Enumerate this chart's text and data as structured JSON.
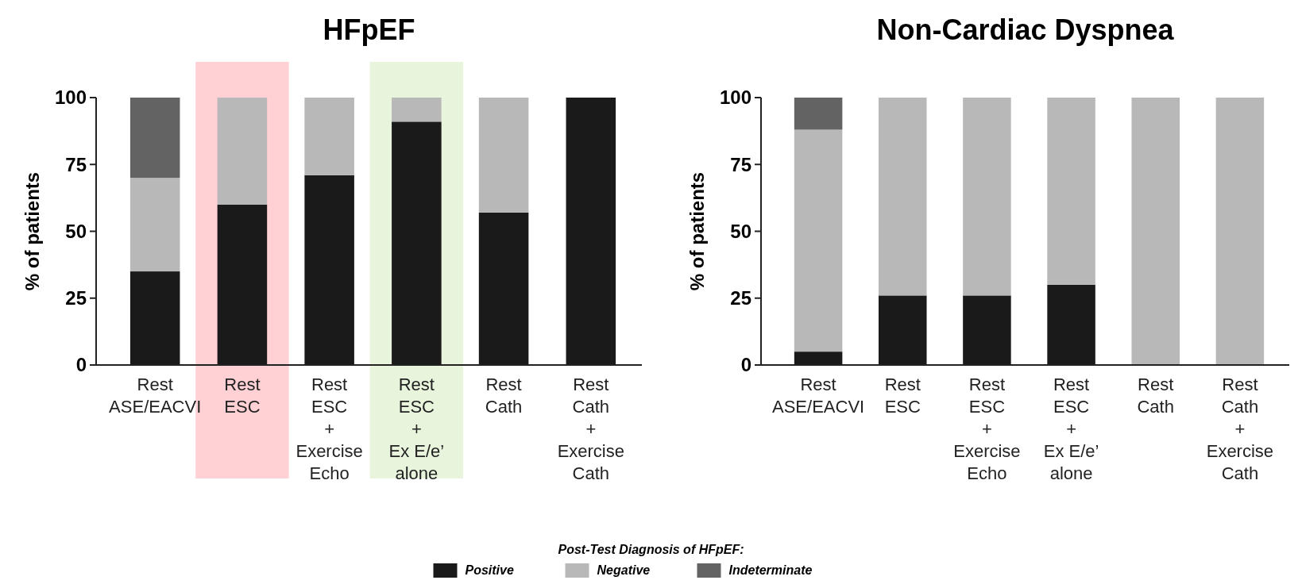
{
  "chart_data": [
    {
      "type": "bar",
      "title": "HFpEF",
      "ylabel": "% of patients",
      "stacked": true,
      "legend": "bottom",
      "legend_title": "Post-Test Diagnosis of HFpEF:",
      "categories": [
        "Rest\nASE/EACVI",
        "Rest\nESC",
        "Rest\nESC\n+\nExercise\nEcho",
        "Rest\nESC\n+\nEx E/e’\nalone",
        "Rest\nCath",
        "Rest\nCath\n+\nExercise\nCath"
      ],
      "series": [
        {
          "name": "Positive",
          "color": "#1a1a1a",
          "values": [
            35,
            60,
            71,
            91,
            57,
            100
          ]
        },
        {
          "name": "Negative",
          "color": "#b8b8b8",
          "values": [
            35,
            40,
            29,
            9,
            43,
            0
          ]
        },
        {
          "name": "Indeterminate",
          "color": "#636363",
          "values": [
            30,
            0,
            0,
            0,
            0,
            0
          ]
        }
      ],
      "ylim": [
        0,
        100
      ],
      "yticks": [
        0,
        25,
        50,
        75,
        100
      ],
      "grid": false,
      "bands": [
        {
          "axis": "x",
          "from": "Rest\nESC",
          "to": "Rest\nESC",
          "color": "#ffb3b9"
        },
        {
          "axis": "x",
          "from": "Rest\nESC\n+\nEx E/e’\nalone",
          "to": "Rest\nESC\n+\nEx E/e’\nalone",
          "color": "#d8edc4"
        }
      ]
    },
    {
      "type": "bar",
      "title": "Non-Cardiac Dyspnea",
      "ylabel": "% of patients",
      "stacked": true,
      "categories": [
        "Rest\nASE/EACVI",
        "Rest\nESC",
        "Rest\nESC\n+\nExercise\nEcho",
        "Rest\nESC\n+\nEx E/e’\nalone",
        "Rest\nCath",
        "Rest\nCath\n+\nExercise\nCath"
      ],
      "series": [
        {
          "color": "#1a1a1a",
          "values": [
            5,
            26,
            26,
            30,
            0,
            0
          ]
        },
        {
          "color": "#b8b8b8",
          "values": [
            83,
            74,
            74,
            70,
            100,
            100
          ]
        },
        {
          "color": "#636363",
          "values": [
            12,
            0,
            0,
            0,
            0,
            0
          ]
        }
      ],
      "ylim": [
        0,
        100
      ],
      "yticks": [
        0,
        25,
        50,
        75,
        100
      ],
      "grid": false
    }
  ]
}
